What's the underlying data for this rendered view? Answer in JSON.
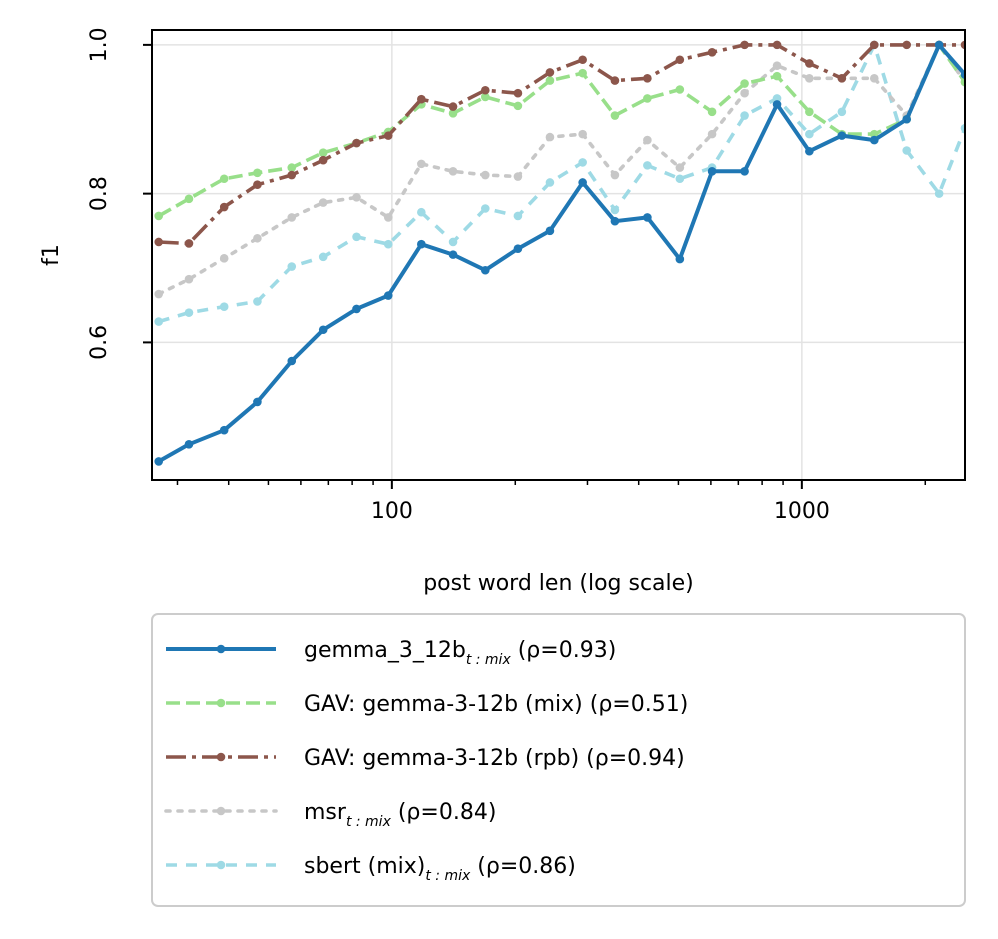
{
  "chart_data": {
    "type": "line",
    "xlabel": "post word len (log scale)",
    "ylabel": "f1",
    "xscale": "log",
    "xlim": [
      26,
      2500
    ],
    "ylim": [
      0.415,
      1.02
    ],
    "xticks": [
      100,
      1000
    ],
    "xtick_labels": [
      "100",
      "1000"
    ],
    "yticks": [
      0.6,
      0.8,
      1.0
    ],
    "ytick_labels": [
      "0.6",
      "0.8",
      "1.0"
    ],
    "grid": true,
    "legend_position": "below",
    "x": [
      27,
      32,
      39,
      47,
      57,
      68,
      82,
      98,
      118,
      141,
      169,
      203,
      243,
      292,
      350,
      420,
      504,
      604,
      725,
      870,
      1043,
      1252,
      1502,
      1802,
      2162,
      2500
    ],
    "series": [
      {
        "name": "gemma_3_12b",
        "name_sub": "t : mix",
        "name_suffix": " (ρ=0.93)",
        "color": "#1f77b4",
        "style": "solid",
        "values": [
          0.44,
          0.463,
          0.482,
          0.52,
          0.575,
          0.617,
          0.645,
          0.663,
          0.732,
          0.718,
          0.697,
          0.726,
          0.75,
          0.815,
          0.763,
          0.768,
          0.712,
          0.83,
          0.83,
          0.92,
          0.857,
          0.878,
          0.872,
          0.9,
          1.0,
          0.96
        ]
      },
      {
        "name": "GAV: gemma-3-12b (mix)",
        "name_sub": "",
        "name_suffix": " (ρ=0.51)",
        "color": "#98df8a",
        "style": "dashed",
        "values": [
          0.77,
          0.793,
          0.82,
          0.828,
          0.835,
          0.855,
          0.868,
          0.883,
          0.92,
          0.908,
          0.93,
          0.918,
          0.952,
          0.962,
          0.905,
          0.928,
          0.94,
          0.91,
          0.948,
          0.958,
          0.91,
          0.88,
          0.88,
          0.9,
          1.0,
          0.95
        ]
      },
      {
        "name": "GAV: gemma-3-12b (rpb)",
        "name_sub": "",
        "name_suffix": " (ρ=0.94)",
        "color": "#8c564b",
        "style": "dashdot",
        "values": [
          0.735,
          0.733,
          0.782,
          0.812,
          0.825,
          0.845,
          0.868,
          0.878,
          0.927,
          0.917,
          0.939,
          0.935,
          0.963,
          0.98,
          0.952,
          0.955,
          0.98,
          0.99,
          1.0,
          1.0,
          0.975,
          0.955,
          1.0,
          1.0,
          1.0,
          1.0
        ]
      },
      {
        "name": "msr",
        "name_sub": "t : mix",
        "name_suffix": " (ρ=0.84)",
        "color": "#c7c7c7",
        "style": "dotted",
        "values": [
          0.665,
          0.685,
          0.713,
          0.74,
          0.768,
          0.788,
          0.795,
          0.768,
          0.84,
          0.83,
          0.825,
          0.823,
          0.876,
          0.88,
          0.825,
          0.872,
          0.835,
          0.88,
          0.935,
          0.972,
          0.955,
          0.955,
          0.955,
          0.905,
          1.0,
          0.95
        ]
      },
      {
        "name": "sbert (mix)",
        "name_sub": "t : mix",
        "name_suffix": " (ρ=0.86)",
        "color": "#9edae5",
        "style": "loosedash",
        "values": [
          0.628,
          0.64,
          0.648,
          0.655,
          0.702,
          0.715,
          0.742,
          0.732,
          0.775,
          0.735,
          0.78,
          0.77,
          0.815,
          0.842,
          0.778,
          0.838,
          0.82,
          0.835,
          0.905,
          0.928,
          0.88,
          0.91,
          1.0,
          0.858,
          0.8,
          0.888
        ]
      }
    ]
  }
}
